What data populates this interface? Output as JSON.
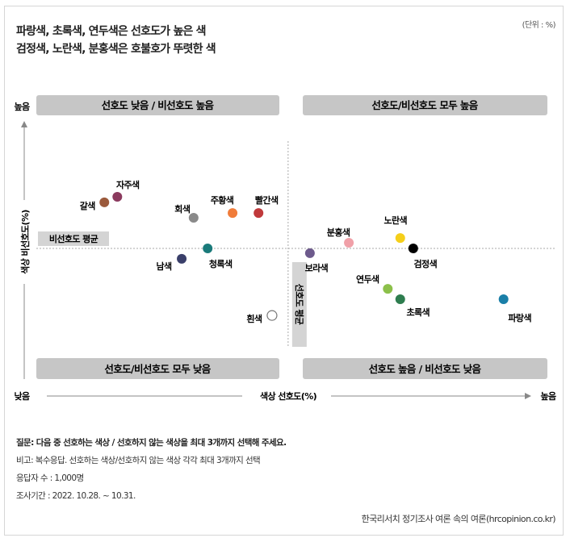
{
  "title_lines": [
    "파랑색, 초록색, 연두색은 선호도가 높은 색",
    "검정색, 노란색, 분홍색은 호불호가 뚜렷한 색"
  ],
  "unit": "(단위 : %)",
  "notes": [
    "질문: 다음 중 선호하는 색상 / 선호하지 않는 색상을 최대 3개까지 선택해 주세요.",
    "비고: 복수응답. 선호하는 색상/선호하지 않는 색상 각각 최대 3개까지 선택",
    "응답자 수 : 1,000명",
    "조사기간 : 2022. 10.28. ~ 10.31."
  ],
  "source": "한국리서치 정기조사 여론 속의 여론(hrcopinion.co.kr)",
  "chart_data": {
    "type": "scatter",
    "xlabel": "색상 선호도(%)",
    "ylabel": "색상 비선호도(%)",
    "x_low": "낮음",
    "x_high": "높음",
    "y_high": "높음",
    "xlim": [
      0,
      100
    ],
    "ylim": [
      0,
      100
    ],
    "grid": false,
    "x_average": 48.5,
    "y_average": 49.1,
    "x_average_label": "선호도 평균",
    "y_average_label": "비선호도 평균",
    "quadrants": {
      "top_left": "선호도 낮음 / 비선호도 높음",
      "top_right": "선호도/비선호도 모두 높음",
      "bottom_left": "선호도/비선호도 모두 낮음",
      "bottom_right": "선호도 높음 / 비선호도 낮음"
    },
    "points": [
      {
        "name": "갈색",
        "x": 13.1,
        "y": 66.4,
        "color": "#9b5a3c"
      },
      {
        "name": "자주색",
        "x": 15.6,
        "y": 68.5,
        "color": "#8b3a5e"
      },
      {
        "name": "회색",
        "x": 30.3,
        "y": 60.6,
        "color": "#8a8a8a"
      },
      {
        "name": "주황색",
        "x": 37.8,
        "y": 62.4,
        "color": "#f07c3a"
      },
      {
        "name": "빨간색",
        "x": 42.8,
        "y": 62.4,
        "color": "#c0393b"
      },
      {
        "name": "청록색",
        "x": 33.0,
        "y": 49.1,
        "color": "#1a7a7a"
      },
      {
        "name": "남색",
        "x": 28.0,
        "y": 45.2,
        "color": "#3a3f6a"
      },
      {
        "name": "흰색",
        "x": 45.4,
        "y": 23.9,
        "color": "#ffffff"
      },
      {
        "name": "보라색",
        "x": 52.7,
        "y": 47.3,
        "color": "#6d5a8c"
      },
      {
        "name": "분홍색",
        "x": 60.2,
        "y": 51.2,
        "color": "#f0a0a8"
      },
      {
        "name": "노란색",
        "x": 70.1,
        "y": 53.0,
        "color": "#f5cf1a"
      },
      {
        "name": "검정색",
        "x": 72.6,
        "y": 49.1,
        "color": "#000000"
      },
      {
        "name": "연두색",
        "x": 67.7,
        "y": 33.9,
        "color": "#8cc04a"
      },
      {
        "name": "초록색",
        "x": 70.1,
        "y": 30.0,
        "color": "#2e7d4f"
      },
      {
        "name": "파랑색",
        "x": 90.0,
        "y": 30.0,
        "color": "#1a7fa8"
      }
    ]
  }
}
